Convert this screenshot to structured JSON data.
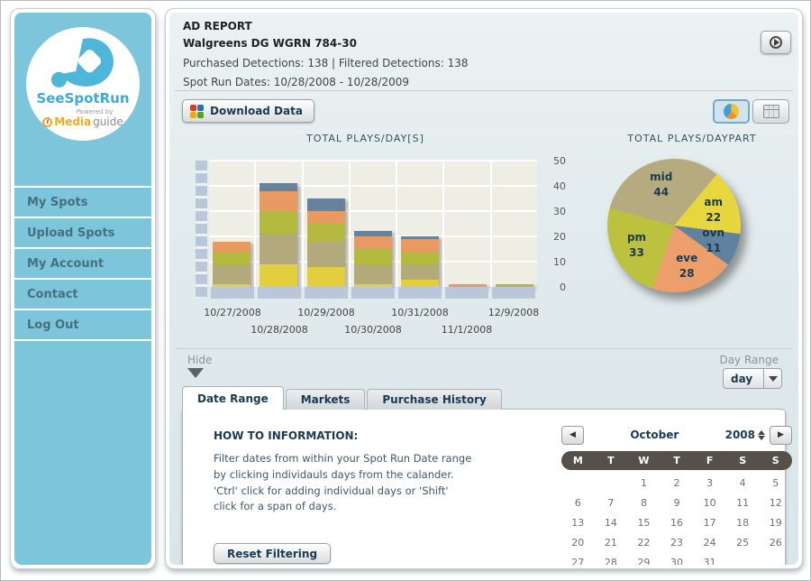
{
  "sidebar": {
    "logo": {
      "brand": "SeeSpotRun",
      "powered_by": "Powered by",
      "media": "Media",
      "guide": "guide",
      "info": "i"
    },
    "items": [
      {
        "label": "My Spots"
      },
      {
        "label": "Upload Spots"
      },
      {
        "label": "My Account"
      },
      {
        "label": "Contact"
      },
      {
        "label": "Log Out"
      }
    ]
  },
  "header": {
    "title": "AD REPORT",
    "subtitle": "Walgreens DG WGRN 784-30",
    "detections_line": "Purchased Detections: 138 | Filtered Detections: 138",
    "spot_run_line": "Spot Run Dates: 10/28/2008 - 10/28/2009"
  },
  "toolbar": {
    "download_label": "Download Data"
  },
  "filter_bar": {
    "hide_label": "Hide",
    "day_range_label": "Day Range",
    "day_range_value": "day"
  },
  "tabs": [
    {
      "label": "Date Range",
      "active": true
    },
    {
      "label": "Markets",
      "active": false
    },
    {
      "label": "Purchase History",
      "active": false
    }
  ],
  "howto": {
    "heading": "HOW TO INFORMATION:",
    "lines": [
      "Filter dates from within your Spot Run Date range",
      "by clicking individauls days from the calander.",
      "'Ctrl' click for adding individual days or 'Shift'",
      "click for a span of days."
    ]
  },
  "reset_button_label": "Reset Filtering",
  "calendar": {
    "month": "October",
    "year": "2008",
    "day_headers": [
      "M",
      "T",
      "W",
      "T",
      "F",
      "S",
      "S"
    ],
    "weeks": [
      [
        "",
        "",
        "1",
        "2",
        "3",
        "4",
        "5"
      ],
      [
        "6",
        "7",
        "8",
        "9",
        "10",
        "11",
        "12"
      ],
      [
        "13",
        "14",
        "15",
        "16",
        "17",
        "18",
        "19"
      ],
      [
        "20",
        "21",
        "22",
        "23",
        "24",
        "25",
        "26"
      ],
      [
        "27",
        "28",
        "29",
        "30",
        "31",
        "",
        ""
      ]
    ]
  },
  "colors": {
    "sidebar_blue": "#7cc5da",
    "panel_bg": "#dde8eb",
    "plot_bg": "#efeee5",
    "axis_strip": "#b9c7d9",
    "accent_navy": "#1b3a52"
  },
  "chart_data": [
    {
      "type": "bar",
      "stacked": true,
      "title": "TOTAL PLAYS/DAY[S]",
      "categories": [
        "10/27/2008",
        "10/28/2008",
        "10/29/2008",
        "10/30/2008",
        "10/31/2008",
        "11/1/2008",
        "12/9/2008"
      ],
      "series": [
        {
          "name": "am",
          "color": "#e3cf3d",
          "values": [
            1,
            9,
            8,
            1,
            3,
            0,
            0
          ]
        },
        {
          "name": "mid",
          "color": "#b3aa7c",
          "values": [
            8,
            12,
            10,
            8,
            6,
            0,
            0
          ]
        },
        {
          "name": "pm",
          "color": "#b4ba40",
          "values": [
            5,
            9,
            7,
            6,
            5,
            0,
            1
          ]
        },
        {
          "name": "eve",
          "color": "#e89a62",
          "values": [
            4,
            8,
            5,
            5,
            5,
            1,
            0
          ]
        },
        {
          "name": "ovn",
          "color": "#64839f",
          "values": [
            0,
            3,
            5,
            2,
            1,
            0,
            0
          ]
        }
      ],
      "totals": [
        18,
        41,
        35,
        22,
        20,
        1,
        1
      ],
      "xlabel": "",
      "ylabel": "",
      "ylim": [
        0,
        50
      ],
      "yticks": [
        0,
        10,
        20,
        30,
        40,
        50
      ],
      "grid": true,
      "legend": "none"
    },
    {
      "type": "pie",
      "title": "TOTAL PLAYS/DAYPART",
      "slices": [
        {
          "label": "mid",
          "value": 44,
          "color": "#b5ab7f"
        },
        {
          "label": "am",
          "value": 22,
          "color": "#e8d63f"
        },
        {
          "label": "ovn",
          "value": 11,
          "color": "#5f82a0"
        },
        {
          "label": "eve",
          "value": 28,
          "color": "#ec9f6b"
        },
        {
          "label": "pm",
          "value": 33,
          "color": "#bcc13e"
        }
      ],
      "total": 138,
      "start_angle_deg": 285,
      "legend": "inside-labels"
    }
  ]
}
